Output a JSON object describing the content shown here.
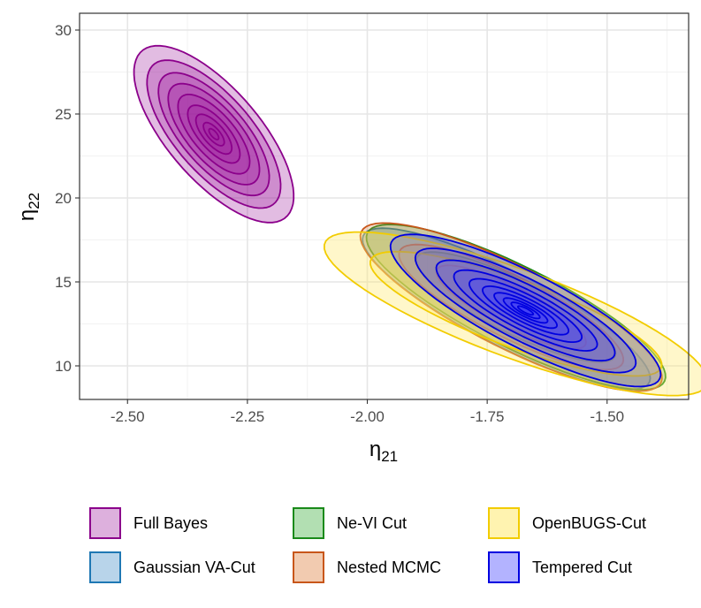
{
  "chart_data": {
    "type": "contour",
    "xlabel": "η",
    "xlabel_sub": "21",
    "ylabel": "η",
    "ylabel_sub": "22",
    "xlim": [
      -2.6,
      -1.33
    ],
    "ylim": [
      8,
      31
    ],
    "xticks": [
      -2.5,
      -2.25,
      -2.0,
      -1.75,
      -1.5
    ],
    "xtick_labels": [
      "-2.50",
      "-2.25",
      "-2.00",
      "-1.75",
      "-1.50"
    ],
    "yticks": [
      10,
      15,
      20,
      25,
      30
    ],
    "ytick_labels": [
      "10",
      "15",
      "20",
      "25",
      "30"
    ],
    "grid": true,
    "legend_position": "bottom",
    "series": [
      {
        "name": "Full Bayes",
        "stroke": "#8B008B",
        "fill": "#A020A0",
        "alpha": 0.3,
        "mode": "fill",
        "center": [
          -2.32,
          23.8
        ],
        "rho": -0.7,
        "sd_x": 0.068,
        "sd_y": 2.15,
        "levels": [
          2.45,
          2.05,
          1.7,
          1.4,
          1.1,
          0.8,
          0.55,
          0.32,
          0.15
        ]
      },
      {
        "name": "Gaussian VA-Cut",
        "stroke": "#1F78B4",
        "fill": "#6BAED6",
        "alpha": 0.4,
        "mode": "fill",
        "center": [
          -1.71,
          13.4
        ],
        "rho": -0.86,
        "sd_x": 0.125,
        "sd_y": 2.0,
        "levels": [
          2.4
        ]
      },
      {
        "name": "Ne-VI Cut",
        "stroke": "#1A8A1A",
        "fill": "#33A02C",
        "alpha": 0.28,
        "mode": "fill",
        "center": [
          -1.69,
          13.5
        ],
        "rho": -0.84,
        "sd_x": 0.13,
        "sd_y": 2.05,
        "levels": [
          2.4,
          1.6
        ]
      },
      {
        "name": "Nested MCMC",
        "stroke": "#C8561A",
        "fill": "#E08040",
        "alpha": 0.28,
        "mode": "fill",
        "center": [
          -1.7,
          13.5
        ],
        "rho": -0.84,
        "sd_x": 0.13,
        "sd_y": 2.07,
        "levels": [
          2.42,
          1.8,
          1.2
        ]
      },
      {
        "name": "OpenBUGS-Cut",
        "stroke": "#F2CC00",
        "fill": "#FFE866",
        "alpha": 0.35,
        "mode": "fill",
        "center": [
          -1.69,
          13.1
        ],
        "rho": -0.82,
        "sd_x": 0.16,
        "sd_y": 1.95,
        "levels": [
          2.5,
          1.9
        ]
      },
      {
        "name": "Tempered Cut",
        "stroke": "#0000E0",
        "fill": "#3B3BFF",
        "alpha": 0.25,
        "mode": "fill",
        "center": [
          -1.67,
          13.3
        ],
        "rho": -0.84,
        "sd_x": 0.115,
        "sd_y": 1.85,
        "levels": [
          2.45,
          2.0,
          1.62,
          1.3,
          1.02,
          0.78,
          0.57,
          0.4,
          0.26,
          0.14
        ]
      }
    ],
    "legend_items": [
      {
        "name": "Full Bayes",
        "stroke": "#8B008B",
        "fill": "#DDB0DD"
      },
      {
        "name": "Ne-VI Cut",
        "stroke": "#1A8A1A",
        "fill": "#B2DFB2"
      },
      {
        "name": "OpenBUGS-Cut",
        "stroke": "#F2CC00",
        "fill": "#FFF3B0"
      },
      {
        "name": "Gaussian VA-Cut",
        "stroke": "#1F78B4",
        "fill": "#B8D4EA"
      },
      {
        "name": "Nested MCMC",
        "stroke": "#C8561A",
        "fill": "#F2CBB0"
      },
      {
        "name": "Tempered Cut",
        "stroke": "#0000E0",
        "fill": "#B3B3FF"
      }
    ]
  }
}
